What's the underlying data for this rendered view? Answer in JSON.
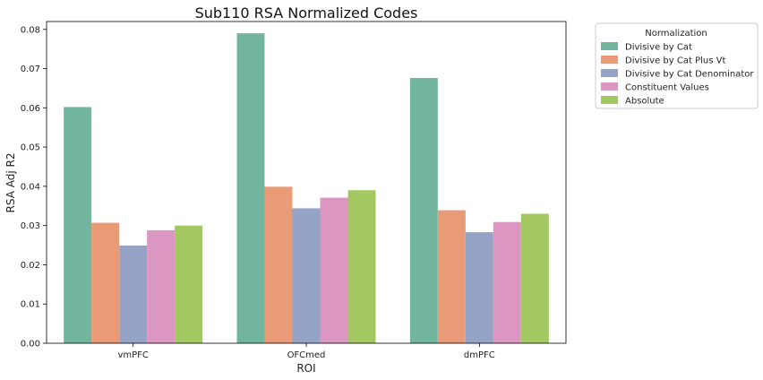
{
  "chart_data": {
    "type": "bar",
    "title": "Sub110 RSA Normalized Codes",
    "xlabel": "ROI",
    "ylabel": "RSA Adj R2",
    "categories": [
      "vmPFC",
      "OFCmed",
      "dmPFC"
    ],
    "ylim": [
      0,
      0.082
    ],
    "yticks": [
      "0.00",
      "0.01",
      "0.02",
      "0.03",
      "0.04",
      "0.05",
      "0.06",
      "0.07",
      "0.08"
    ],
    "legend": {
      "title": "Normalization",
      "placement": "outside right"
    },
    "grid": false,
    "series": [
      {
        "name": "Divisive by Cat",
        "color": "#72b59f",
        "values": [
          0.0602,
          0.079,
          0.0676
        ]
      },
      {
        "name": "Divisive by Cat Plus Vt",
        "color": "#e99a76",
        "values": [
          0.0307,
          0.0399,
          0.0339
        ]
      },
      {
        "name": "Divisive by Cat Denominator",
        "color": "#95a4c6",
        "values": [
          0.0249,
          0.0344,
          0.0283
        ]
      },
      {
        "name": "Constituent Values",
        "color": "#db96c1",
        "values": [
          0.0288,
          0.0371,
          0.0309
        ]
      },
      {
        "name": "Absolute",
        "color": "#a3c862",
        "values": [
          0.03,
          0.039,
          0.033
        ]
      }
    ]
  }
}
